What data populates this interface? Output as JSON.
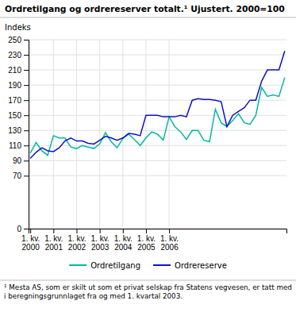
{
  "chart_data": {
    "type": "line",
    "title": "Ordretilgang og ordrereserver totalt.¹ Ujustert. 2000=100",
    "ylabel": "Indeks",
    "annotations": [
      "¹ Mesta AS, som er skilt ut som et privat selskap fra Statens vegvesen, er tatt med\ni beregningsgrunnlaget fra og med 1. kvartal 2003."
    ],
    "categories": [
      "1. kv.\n2000",
      null,
      null,
      null,
      "1. kv.\n2001",
      null,
      null,
      null,
      "1. kv.\n2002",
      null,
      null,
      null,
      "1. kv.\n2003",
      null,
      null,
      null,
      "1. kv.\n2004",
      null,
      null,
      null,
      "1. kv.\n2005",
      null,
      null,
      null,
      "1. kv.\n2006",
      null,
      null,
      null,
      null,
      null,
      null,
      null,
      null,
      null,
      null,
      null,
      null,
      null,
      null,
      null,
      null,
      null,
      null,
      null,
      null
    ],
    "series": [
      {
        "name": "Ordretilgang",
        "color": "#00b8a0",
        "values": [
          100,
          114,
          103,
          97,
          123,
          120,
          120,
          108,
          106,
          110,
          108,
          106,
          112,
          127,
          115,
          107,
          119,
          125,
          118,
          110,
          120,
          128,
          125,
          117,
          148,
          135,
          128,
          118,
          130,
          130,
          117,
          115,
          158,
          140,
          135,
          143,
          152,
          140,
          138,
          150,
          187,
          175,
          177,
          175,
          200
        ]
      },
      {
        "name": "Ordrereserve",
        "color": "#1010cc",
        "values": [
          93,
          101,
          107,
          103,
          102,
          107,
          116,
          120,
          116,
          116,
          113,
          112,
          117,
          122,
          120,
          117,
          120,
          126,
          125,
          123,
          150,
          150,
          150,
          148,
          148,
          148,
          150,
          148,
          170,
          172,
          171,
          171,
          170,
          168,
          135,
          150,
          155,
          160,
          170,
          170,
          195,
          210,
          210,
          210,
          235
        ]
      }
    ],
    "ylim": [
      0,
      250
    ],
    "yticks": [
      0,
      70,
      90,
      110,
      130,
      150,
      170,
      190,
      210,
      230,
      250
    ],
    "grid": true,
    "legend": "bottom"
  }
}
